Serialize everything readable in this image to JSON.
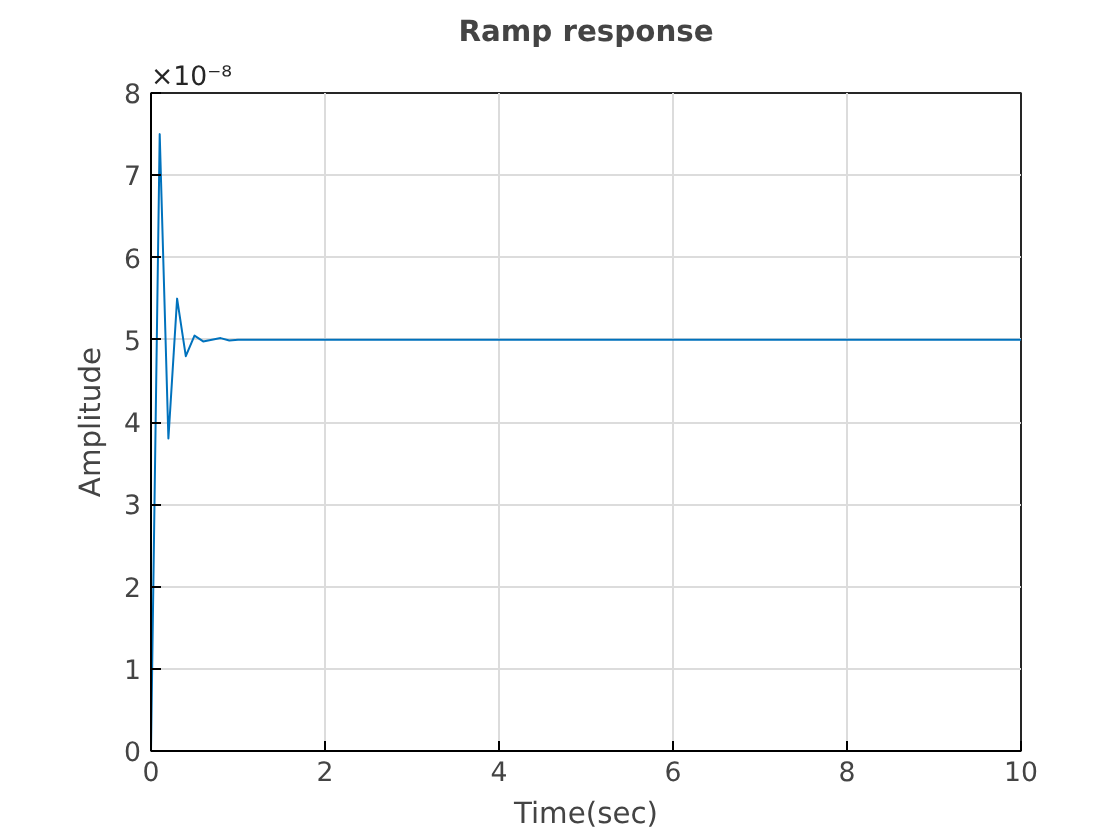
{
  "chart_data": {
    "type": "line",
    "title": "Ramp response",
    "xlabel": "Time(sec)",
    "ylabel": "Amplitude",
    "annotations": [
      "×10⁻⁸"
    ],
    "x": [
      0,
      0.1,
      0.2,
      0.3,
      0.4,
      0.5,
      0.6,
      0.7,
      0.8,
      0.9,
      1.0,
      1.2,
      2,
      4,
      6,
      8,
      10
    ],
    "series": [
      {
        "color": "#0072bd",
        "values": [
          0,
          7.5,
          3.8,
          5.5,
          4.8,
          5.05,
          4.98,
          5.0,
          5.02,
          4.99,
          5.0,
          5.0,
          5.0,
          5.0,
          5.0,
          5.0,
          5.0
        ]
      }
    ],
    "xlim": [
      0,
      10
    ],
    "xticks": [
      0,
      2,
      4,
      6,
      8,
      10
    ],
    "ylim": [
      0,
      8
    ],
    "yticks": [
      0,
      1,
      2,
      3,
      4,
      5,
      6,
      7,
      8
    ],
    "grid": true,
    "line_style": "solid",
    "marker": "none"
  }
}
